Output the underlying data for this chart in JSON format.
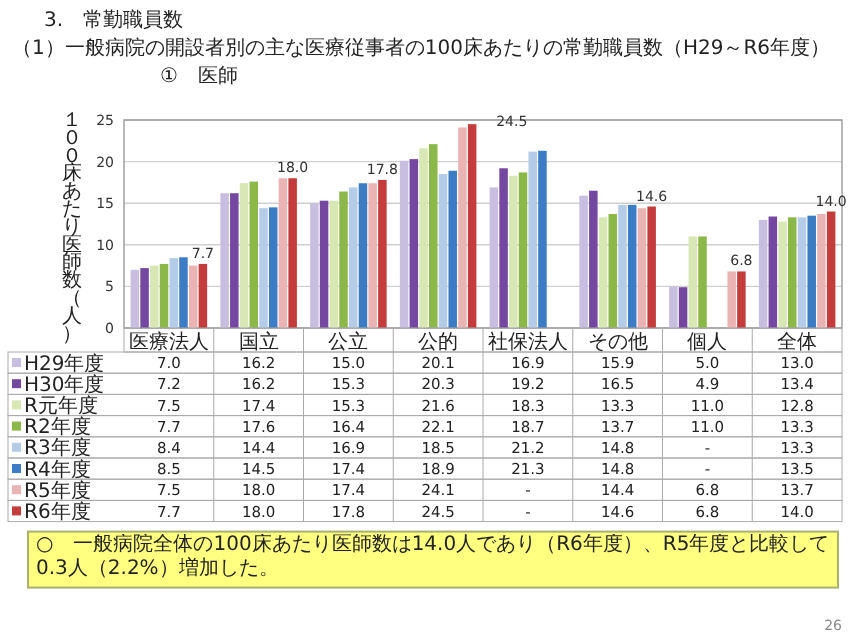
{
  "chart_data": {
    "type": "bar",
    "title": "3.　常勤職員数",
    "subtitle": "（1）一般病院の開設者別の主な医療従事者の100床あたりの常勤職員数（H29～R6年度）",
    "ylabel": "１００床あたり医師数（人）",
    "categories": [
      "医療法人",
      "国立",
      "公立",
      "公的",
      "社保法人",
      "その他",
      "個人",
      "全体"
    ],
    "series": [
      {
        "name": "H29年度",
        "color": "#c8bfe0",
        "values": [
          7.0,
          16.2,
          15.0,
          20.1,
          16.9,
          15.9,
          5.0,
          13.0
        ],
        "value_labels": [
          "7.0",
          "16.2",
          "15.0",
          "20.1",
          "16.9",
          "15.9",
          "5.0",
          "13.0"
        ]
      },
      {
        "name": "H30年度",
        "color": "#7448a0",
        "values": [
          7.2,
          16.2,
          15.3,
          20.3,
          19.2,
          16.5,
          4.9,
          13.4
        ],
        "value_labels": [
          "7.2",
          "16.2",
          "15.3",
          "20.3",
          "19.2",
          "16.5",
          "4.9",
          "13.4"
        ]
      },
      {
        "name": "R元年度",
        "color": "#d8e8b4",
        "values": [
          7.5,
          17.4,
          15.3,
          21.6,
          18.3,
          13.3,
          11.0,
          12.8
        ],
        "value_labels": [
          "7.5",
          "17.4",
          "15.3",
          "21.6",
          "18.3",
          "13.3",
          "11.0",
          "12.8"
        ]
      },
      {
        "name": "R2年度",
        "color": "#8cb84a",
        "values": [
          7.7,
          17.6,
          16.4,
          22.1,
          18.7,
          13.7,
          11.0,
          13.3
        ],
        "value_labels": [
          "7.7",
          "17.6",
          "16.4",
          "22.1",
          "18.7",
          "13.7",
          "11.0",
          "13.3"
        ]
      },
      {
        "name": "R3年度",
        "color": "#b4cce8",
        "values": [
          8.4,
          14.4,
          16.9,
          18.5,
          21.2,
          14.8,
          null,
          13.3
        ],
        "value_labels": [
          "8.4",
          "14.4",
          "16.9",
          "18.5",
          "21.2",
          "14.8",
          "-",
          "13.3"
        ]
      },
      {
        "name": "R4年度",
        "color": "#3c7cc4",
        "values": [
          8.5,
          14.5,
          17.4,
          18.9,
          21.3,
          14.8,
          null,
          13.5
        ],
        "value_labels": [
          "8.5",
          "14.5",
          "17.4",
          "18.9",
          "21.3",
          "14.8",
          "-",
          "13.5"
        ]
      },
      {
        "name": "R5年度",
        "color": "#ebb4b4",
        "values": [
          7.5,
          18.0,
          17.4,
          24.1,
          null,
          14.4,
          6.8,
          13.7
        ],
        "value_labels": [
          "7.5",
          "18.0",
          "17.4",
          "24.1",
          "-",
          "14.4",
          "6.8",
          "13.7"
        ]
      },
      {
        "name": "R6年度",
        "color": "#c43c3c",
        "values": [
          7.7,
          18.0,
          17.8,
          24.5,
          null,
          14.6,
          6.8,
          14.0
        ],
        "value_labels": [
          "7.7",
          "18.0",
          "17.8",
          "24.5",
          "-",
          "14.6",
          "6.8",
          "14.0"
        ]
      }
    ],
    "ylim": [
      0,
      25
    ],
    "yticks": [
      0,
      5,
      10,
      15,
      20,
      25
    ],
    "grid": "y",
    "legend": "bottom",
    "annotations": [
      "①　医師",
      "○　一般病院全体の100床あたり医師数は14.0人であり（R6年度）、R5年度と比較して0.3人（2.2%）増加した。",
      "26"
    ]
  }
}
